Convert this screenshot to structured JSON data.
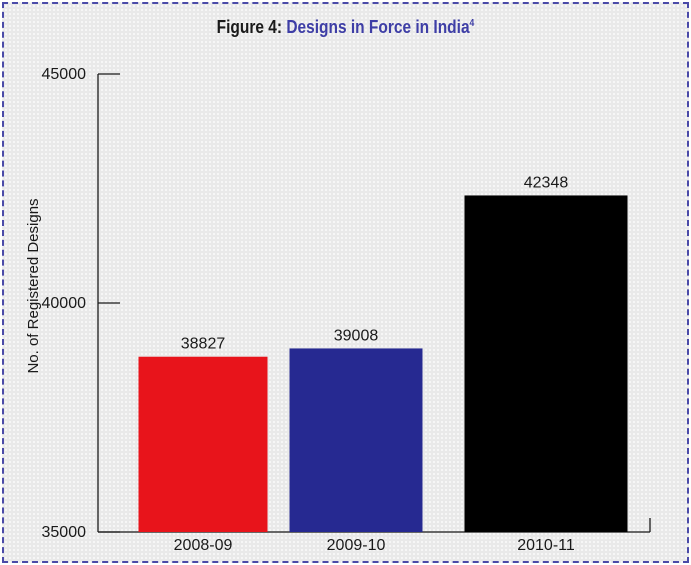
{
  "title": {
    "prefix": "Figure 4: ",
    "main": "Designs in Force in India",
    "sup": "4"
  },
  "chart_data": {
    "type": "bar",
    "title": "Figure 4: Designs in Force in India4",
    "xlabel": "",
    "ylabel": "No. of Registered Designs",
    "categories": [
      "2008-09",
      "2009-10",
      "2010-11"
    ],
    "values": [
      38827,
      39008,
      42348
    ],
    "value_labels": [
      "38827",
      "39008",
      "42348"
    ],
    "bar_colors": [
      "#e8141b",
      "#262991",
      "#000000"
    ],
    "ylim": [
      35000,
      45000
    ],
    "yticks": [
      35000,
      40000,
      45000
    ],
    "ytick_labels": [
      "35000",
      "40000",
      "45000"
    ],
    "grid": false,
    "legend": "none"
  }
}
